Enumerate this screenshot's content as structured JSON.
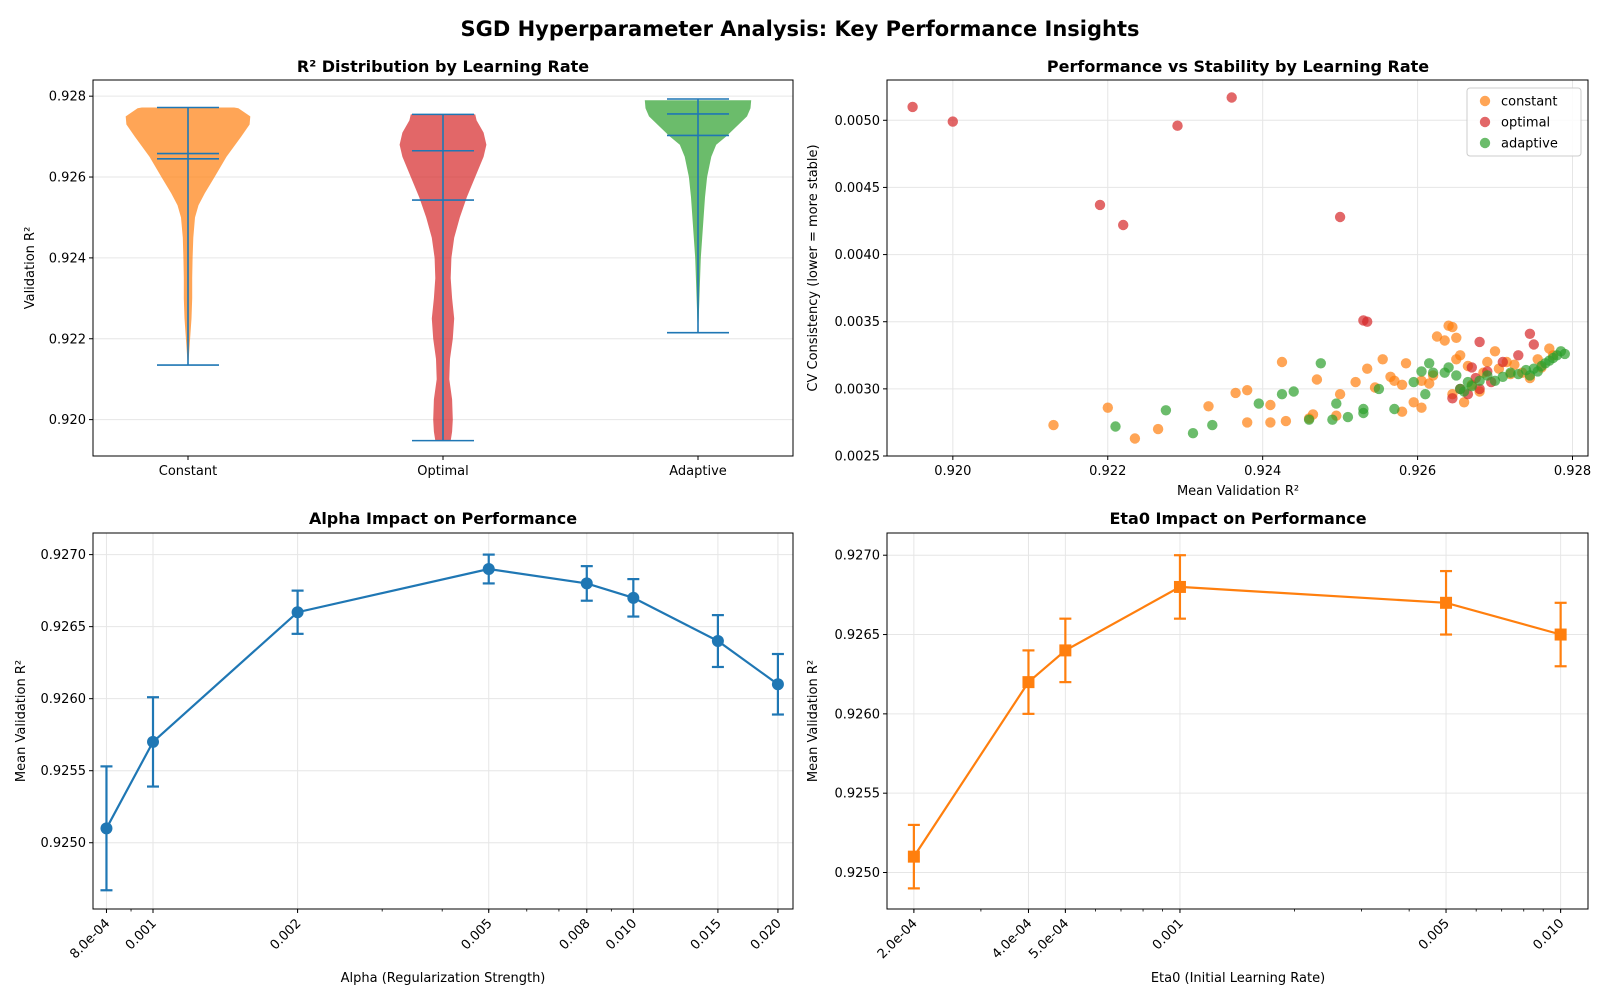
{
  "figure": {
    "suptitle": "SGD Hyperparameter Analysis: Key Performance Insights"
  },
  "colors": {
    "constant": "#ff7f0e",
    "optimal": "#d62728",
    "adaptive": "#2ca02c",
    "blue": "#1f77b4",
    "orange": "#ff7f0e",
    "grid": "#e6e6e6"
  },
  "chart_data": [
    {
      "id": "violin",
      "type": "violin",
      "title": "R² Distribution by Learning Rate",
      "xlabel": "",
      "ylabel": "Validation R²",
      "ylim": [
        0.9191,
        0.9284
      ],
      "yticks": [
        0.92,
        0.922,
        0.924,
        0.926,
        0.928
      ],
      "ytick_labels": [
        "0.920",
        "0.922",
        "0.924",
        "0.926",
        "0.928"
      ],
      "categories": [
        "Constant",
        "Optimal",
        "Adaptive"
      ],
      "series": [
        {
          "name": "Constant",
          "color": "#ff7f0e",
          "min": 0.92135,
          "max": 0.92772,
          "mean": 0.92645,
          "median": 0.92658,
          "profile": [
            [
              0.92135,
              0.001
            ],
            [
              0.9215,
              0.01
            ],
            [
              0.922,
              0.03
            ],
            [
              0.9225,
              0.05
            ],
            [
              0.923,
              0.06
            ],
            [
              0.9235,
              0.06
            ],
            [
              0.924,
              0.065
            ],
            [
              0.9245,
              0.075
            ],
            [
              0.925,
              0.1
            ],
            [
              0.9253,
              0.15
            ],
            [
              0.9256,
              0.24
            ],
            [
              0.926,
              0.38
            ],
            [
              0.9265,
              0.55
            ],
            [
              0.927,
              0.76
            ],
            [
              0.9273,
              0.88
            ],
            [
              0.9275,
              0.89
            ],
            [
              0.9277,
              0.72
            ],
            [
              0.92772,
              0.66
            ]
          ]
        },
        {
          "name": "Optimal",
          "color": "#d62728",
          "min": 0.91948,
          "max": 0.92755,
          "mean": 0.92543,
          "median": 0.92665,
          "profile": [
            [
              0.91948,
              0.11
            ],
            [
              0.9197,
              0.13
            ],
            [
              0.92,
              0.14
            ],
            [
              0.9205,
              0.13
            ],
            [
              0.921,
              0.09
            ],
            [
              0.9215,
              0.1
            ],
            [
              0.922,
              0.14
            ],
            [
              0.9225,
              0.16
            ],
            [
              0.923,
              0.13
            ],
            [
              0.9235,
              0.11
            ],
            [
              0.924,
              0.12
            ],
            [
              0.9245,
              0.16
            ],
            [
              0.925,
              0.24
            ],
            [
              0.9255,
              0.34
            ],
            [
              0.926,
              0.46
            ],
            [
              0.9265,
              0.58
            ],
            [
              0.9268,
              0.62
            ],
            [
              0.9271,
              0.58
            ],
            [
              0.9274,
              0.48
            ],
            [
              0.92755,
              0.46
            ]
          ]
        },
        {
          "name": "Adaptive",
          "color": "#2ca02c",
          "min": 0.92215,
          "max": 0.92793,
          "mean": 0.92756,
          "median": 0.92703,
          "profile": [
            [
              0.92215,
              0.001
            ],
            [
              0.9225,
              0.01
            ],
            [
              0.923,
              0.02
            ],
            [
              0.9235,
              0.03
            ],
            [
              0.924,
              0.04
            ],
            [
              0.9245,
              0.06
            ],
            [
              0.925,
              0.08
            ],
            [
              0.9255,
              0.1
            ],
            [
              0.926,
              0.13
            ],
            [
              0.9265,
              0.19
            ],
            [
              0.9268,
              0.26
            ],
            [
              0.927,
              0.4
            ],
            [
              0.9273,
              0.58
            ],
            [
              0.9275,
              0.7
            ],
            [
              0.9277,
              0.75
            ],
            [
              0.9279,
              0.76
            ]
          ]
        }
      ]
    },
    {
      "id": "scatter",
      "type": "scatter",
      "title": "Performance vs Stability by Learning Rate",
      "xlabel": "Mean Validation R²",
      "ylabel": "CV Consistency (lower = more stable)",
      "xlim": [
        0.91915,
        0.9282
      ],
      "ylim": [
        0.0025,
        0.0053
      ],
      "xticks": [
        0.92,
        0.922,
        0.924,
        0.926,
        0.928
      ],
      "xtick_labels": [
        "0.920",
        "0.922",
        "0.924",
        "0.926",
        "0.928"
      ],
      "yticks": [
        0.0025,
        0.003,
        0.0035,
        0.004,
        0.0045,
        0.005
      ],
      "ytick_labels": [
        "0.0025",
        "0.0030",
        "0.0035",
        "0.0040",
        "0.0045",
        "0.0050"
      ],
      "legend": {
        "position": "top-right",
        "entries": [
          "constant",
          "optimal",
          "adaptive"
        ]
      },
      "series": [
        {
          "name": "constant",
          "color": "#ff7f0e",
          "points": [
            [
              0.9213,
              0.00273
            ],
            [
              0.922,
              0.00286
            ],
            [
              0.92235,
              0.00263
            ],
            [
              0.92265,
              0.0027
            ],
            [
              0.9233,
              0.00287
            ],
            [
              0.92365,
              0.00297
            ],
            [
              0.9238,
              0.00299
            ],
            [
              0.9238,
              0.00275
            ],
            [
              0.9241,
              0.00288
            ],
            [
              0.9241,
              0.00275
            ],
            [
              0.92425,
              0.0032
            ],
            [
              0.9243,
              0.00276
            ],
            [
              0.9246,
              0.00278
            ],
            [
              0.92465,
              0.00281
            ],
            [
              0.9247,
              0.00307
            ],
            [
              0.92495,
              0.0028
            ],
            [
              0.925,
              0.00296
            ],
            [
              0.9252,
              0.00305
            ],
            [
              0.92535,
              0.00315
            ],
            [
              0.92545,
              0.00301
            ],
            [
              0.92555,
              0.00322
            ],
            [
              0.92565,
              0.00309
            ],
            [
              0.9257,
              0.00306
            ],
            [
              0.9258,
              0.00303
            ],
            [
              0.9258,
              0.00283
            ],
            [
              0.92585,
              0.00319
            ],
            [
              0.92595,
              0.0029
            ],
            [
              0.92605,
              0.00286
            ],
            [
              0.92615,
              0.00304
            ],
            [
              0.92625,
              0.00339
            ],
            [
              0.92635,
              0.00336
            ],
            [
              0.9264,
              0.00347
            ],
            [
              0.92645,
              0.00346
            ],
            [
              0.9265,
              0.00338
            ],
            [
              0.9265,
              0.00322
            ],
            [
              0.92655,
              0.00325
            ],
            [
              0.92665,
              0.00317
            ],
            [
              0.9267,
              0.00303
            ],
            [
              0.9268,
              0.00298
            ],
            [
              0.92685,
              0.00312
            ],
            [
              0.9269,
              0.0032
            ],
            [
              0.927,
              0.00328
            ],
            [
              0.92705,
              0.00315
            ],
            [
              0.92715,
              0.0032
            ],
            [
              0.92725,
              0.00318
            ],
            [
              0.92735,
              0.00312
            ],
            [
              0.92745,
              0.00308
            ],
            [
              0.92755,
              0.00322
            ],
            [
              0.9276,
              0.00316
            ],
            [
              0.9277,
              0.0033
            ],
            [
              0.92775,
              0.00325
            ],
            [
              0.9262,
              0.0031
            ],
            [
              0.92645,
              0.00296
            ],
            [
              0.9266,
              0.0029
            ],
            [
              0.9272,
              0.00311
            ],
            [
              0.92605,
              0.00306
            ]
          ]
        },
        {
          "name": "optimal",
          "color": "#d62728",
          "points": [
            [
              0.91948,
              0.0051
            ],
            [
              0.92,
              0.00499
            ],
            [
              0.9219,
              0.00437
            ],
            [
              0.9222,
              0.00422
            ],
            [
              0.9229,
              0.00496
            ],
            [
              0.9236,
              0.00517
            ],
            [
              0.925,
              0.00428
            ],
            [
              0.9253,
              0.00351
            ],
            [
              0.92535,
              0.0035
            ],
            [
              0.92645,
              0.00293
            ],
            [
              0.92665,
              0.00296
            ],
            [
              0.9267,
              0.00316
            ],
            [
              0.9268,
              0.00335
            ],
            [
              0.9268,
              0.003
            ],
            [
              0.92695,
              0.00305
            ],
            [
              0.9271,
              0.0032
            ],
            [
              0.9273,
              0.00325
            ],
            [
              0.92745,
              0.00341
            ],
            [
              0.9275,
              0.00333
            ],
            [
              0.9269,
              0.00313
            ],
            [
              0.92655,
              0.003
            ],
            [
              0.92675,
              0.00308
            ]
          ]
        },
        {
          "name": "adaptive",
          "color": "#2ca02c",
          "points": [
            [
              0.9221,
              0.00272
            ],
            [
              0.92275,
              0.00284
            ],
            [
              0.9231,
              0.00267
            ],
            [
              0.92335,
              0.00273
            ],
            [
              0.92395,
              0.00289
            ],
            [
              0.92425,
              0.00296
            ],
            [
              0.9244,
              0.00298
            ],
            [
              0.9246,
              0.00277
            ],
            [
              0.92475,
              0.00319
            ],
            [
              0.9249,
              0.00277
            ],
            [
              0.92495,
              0.00289
            ],
            [
              0.9251,
              0.00279
            ],
            [
              0.9253,
              0.00282
            ],
            [
              0.9253,
              0.00285
            ],
            [
              0.9255,
              0.003
            ],
            [
              0.9257,
              0.00285
            ],
            [
              0.92595,
              0.00305
            ],
            [
              0.92605,
              0.00313
            ],
            [
              0.9261,
              0.00296
            ],
            [
              0.92615,
              0.00319
            ],
            [
              0.9262,
              0.00312
            ],
            [
              0.92635,
              0.00312
            ],
            [
              0.9264,
              0.00316
            ],
            [
              0.9265,
              0.0031
            ],
            [
              0.92655,
              0.003
            ],
            [
              0.9266,
              0.00298
            ],
            [
              0.92665,
              0.00305
            ],
            [
              0.9267,
              0.00302
            ],
            [
              0.9268,
              0.00306
            ],
            [
              0.9269,
              0.0031
            ],
            [
              0.927,
              0.00306
            ],
            [
              0.9271,
              0.00309
            ],
            [
              0.9272,
              0.00312
            ],
            [
              0.9273,
              0.00311
            ],
            [
              0.9274,
              0.00314
            ],
            [
              0.92745,
              0.0031
            ],
            [
              0.9275,
              0.00315
            ],
            [
              0.92755,
              0.00313
            ],
            [
              0.9276,
              0.00317
            ],
            [
              0.92765,
              0.00319
            ],
            [
              0.9277,
              0.00321
            ],
            [
              0.92775,
              0.00323
            ],
            [
              0.9278,
              0.00325
            ],
            [
              0.92785,
              0.00328
            ],
            [
              0.9279,
              0.00326
            ]
          ]
        }
      ]
    },
    {
      "id": "alpha",
      "type": "line",
      "title": "Alpha Impact on Performance",
      "xlabel": "Alpha (Regularization Strength)",
      "ylabel": "Mean Validation R²",
      "xscale": "log",
      "xlim": [
        0.00075,
        0.0215
      ],
      "ylim": [
        0.92454,
        0.92715
      ],
      "xticks": [
        0.0008,
        0.001,
        0.002,
        0.005,
        0.008,
        0.01,
        0.015,
        0.02
      ],
      "xtick_labels": [
        "8.0e-04",
        "0.001",
        "0.002",
        "0.005",
        "0.008",
        "0.010",
        "0.015",
        "0.020"
      ],
      "yticks": [
        0.925,
        0.9255,
        0.926,
        0.9265,
        0.927
      ],
      "ytick_labels": [
        "0.9250",
        "0.9255",
        "0.9260",
        "0.9265",
        "0.9270"
      ],
      "color": "#1f77b4",
      "marker": "circle",
      "x": [
        0.0008,
        0.001,
        0.002,
        0.005,
        0.008,
        0.01,
        0.015,
        0.02
      ],
      "y": [
        0.9251,
        0.9257,
        0.9266,
        0.9269,
        0.9268,
        0.9267,
        0.9264,
        0.9261
      ],
      "err": [
        0.00043,
        0.00031,
        0.00015,
        0.0001,
        0.00012,
        0.00013,
        0.00018,
        0.00021
      ]
    },
    {
      "id": "eta0",
      "type": "line",
      "title": "Eta0 Impact on Performance",
      "xlabel": "Eta0 (Initial Learning Rate)",
      "ylabel": "Mean Validation R²",
      "xscale": "log",
      "xlim": [
        0.00017,
        0.0118
      ],
      "ylim": [
        0.92477,
        0.92714
      ],
      "xticks": [
        0.0002,
        0.0004,
        0.0005,
        0.001,
        0.005,
        0.01
      ],
      "xtick_labels": [
        "2.0e-04",
        "4.0e-04",
        "5.0e-04",
        "0.001",
        "0.005",
        "0.010"
      ],
      "yticks": [
        0.925,
        0.9255,
        0.926,
        0.9265,
        0.927
      ],
      "ytick_labels": [
        "0.9250",
        "0.9255",
        "0.9260",
        "0.9265",
        "0.9270"
      ],
      "color": "#ff7f0e",
      "marker": "square",
      "x": [
        0.0002,
        0.0004,
        0.0005,
        0.001,
        0.005,
        0.01
      ],
      "y": [
        0.9251,
        0.9262,
        0.9264,
        0.9268,
        0.9267,
        0.9265
      ],
      "err": [
        0.0002,
        0.0002,
        0.0002,
        0.0002,
        0.0002,
        0.0002
      ]
    }
  ]
}
